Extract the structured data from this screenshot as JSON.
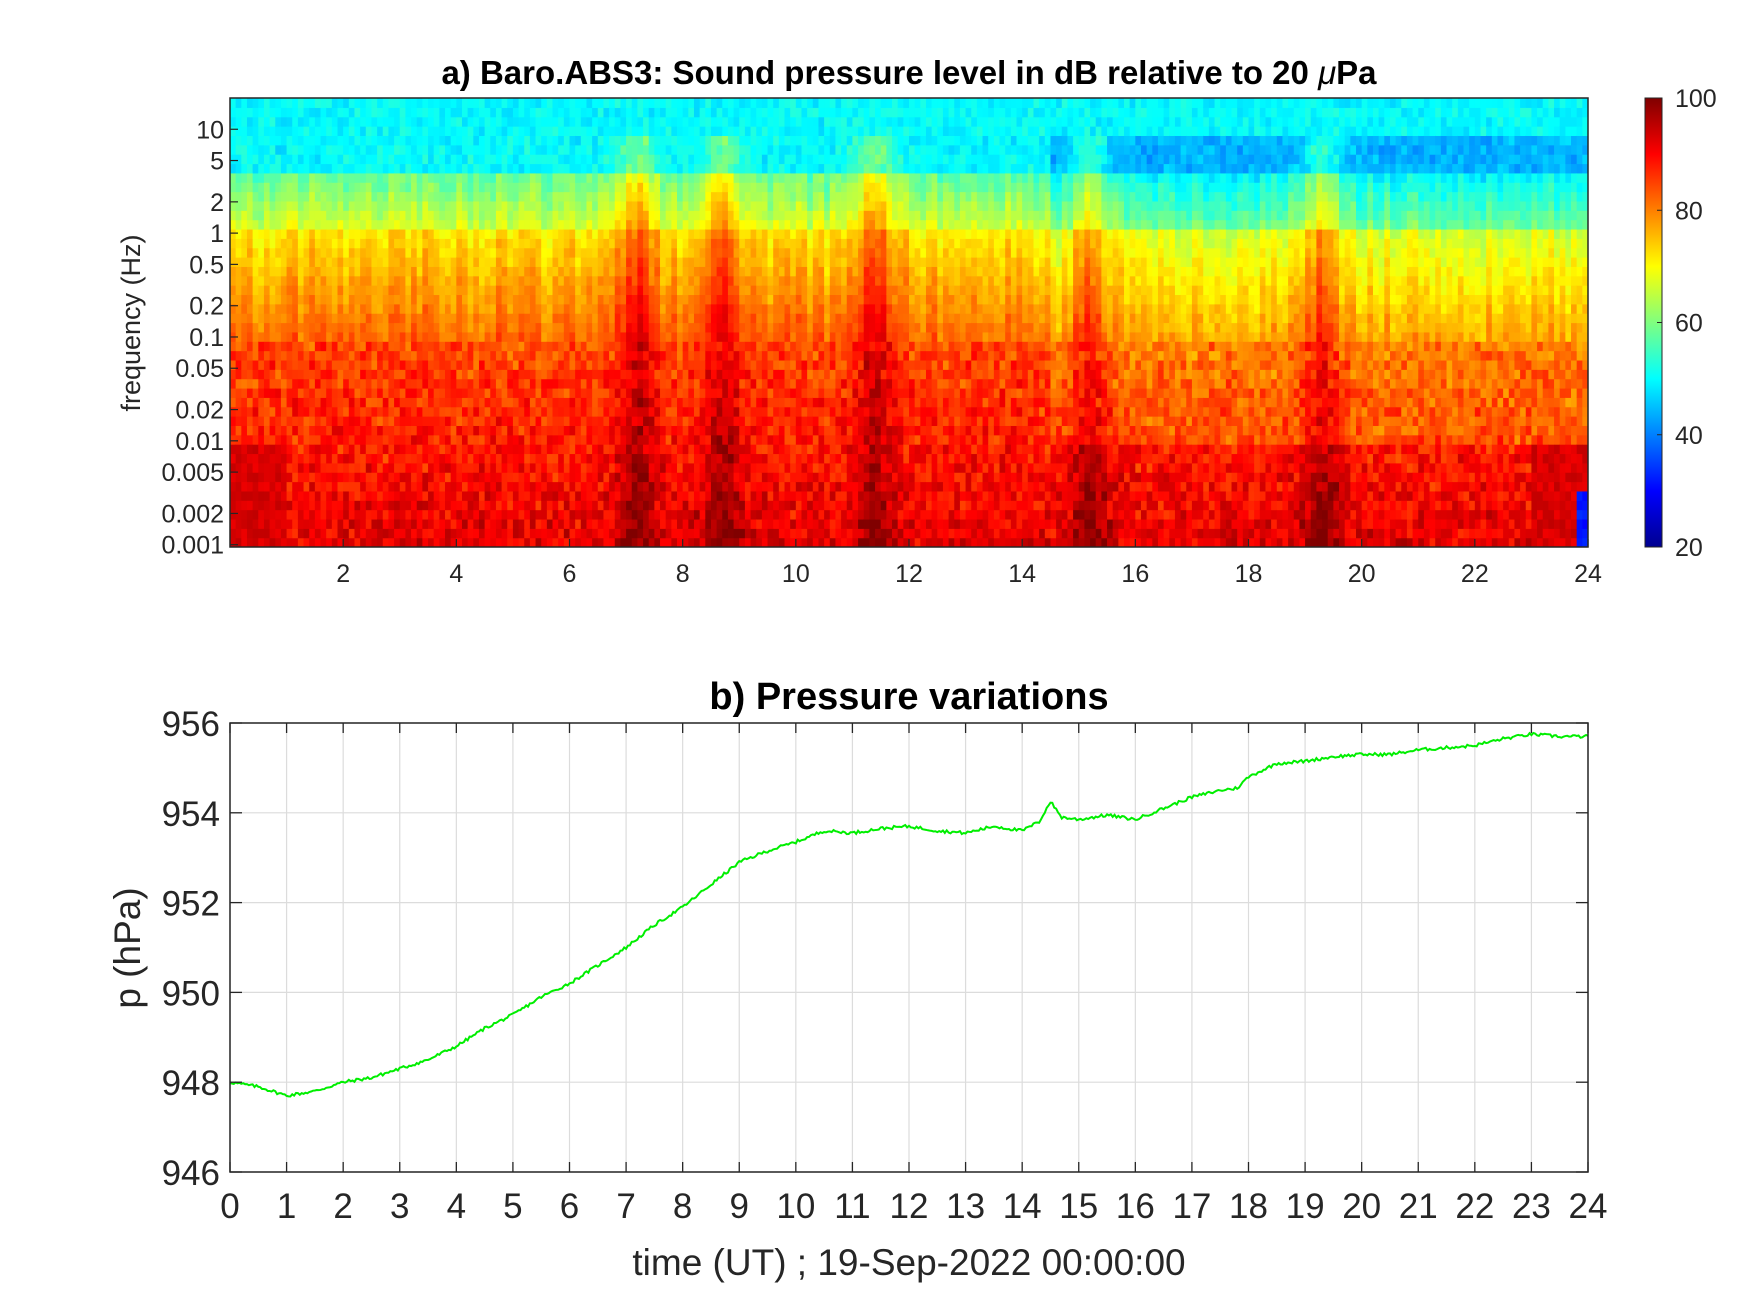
{
  "chart_data": [
    {
      "type": "heatmap",
      "title_pre": "a) Baro.ABS3: Sound pressure level in dB relative to 20 ",
      "title_mu": "μ",
      "title_post": "Pa",
      "xlabel": "",
      "ylabel": "frequency (Hz)",
      "x_range": [
        0,
        24
      ],
      "x_ticks": [
        2,
        4,
        6,
        8,
        10,
        12,
        14,
        16,
        18,
        20,
        22,
        24
      ],
      "y_scale": "log",
      "y_range_hz": [
        0.001,
        20
      ],
      "y_ticks": [
        0.001,
        0.002,
        0.005,
        0.01,
        0.02,
        0.05,
        0.1,
        0.2,
        0.5,
        1,
        2,
        5,
        10
      ],
      "y_tick_labels": [
        "0.001",
        "0.002",
        "0.005",
        "0.01",
        "0.02",
        "0.05",
        "0.1",
        "0.2",
        "0.5",
        "1",
        "2",
        "5",
        "10"
      ],
      "colorbar": {
        "range": [
          20,
          100
        ],
        "ticks": [
          20,
          40,
          60,
          80,
          100
        ],
        "colormap": "jet",
        "position": "right"
      },
      "colormap_stops": [
        "#00008f",
        "#0000ff",
        "#00ffff",
        "#ffff00",
        "#ff0000",
        "#800000"
      ],
      "intense_bursts_hours": [
        7.2,
        8.7,
        11.4,
        15.2,
        19.3
      ],
      "quiet_high_freq_hours": [
        14.5,
        24.0
      ]
    },
    {
      "type": "line",
      "title": "b) Pressure variations",
      "xlabel": "time (UT) ; 19-Sep-2022 00:00:00",
      "ylabel": "p (hPa)",
      "x_range": [
        0,
        24
      ],
      "x_ticks": [
        0,
        1,
        2,
        3,
        4,
        5,
        6,
        7,
        8,
        9,
        10,
        11,
        12,
        13,
        14,
        15,
        16,
        17,
        18,
        19,
        20,
        21,
        22,
        23,
        24
      ],
      "y_range": [
        946,
        956
      ],
      "y_ticks": [
        946,
        948,
        950,
        952,
        954,
        956
      ],
      "grid": true,
      "line_color": "#00ee00",
      "x": [
        0,
        0.5,
        1,
        1.5,
        2,
        2.5,
        3,
        3.5,
        4,
        4.5,
        5,
        5.5,
        6,
        6.5,
        7,
        7.5,
        8,
        8.5,
        9,
        9.5,
        10,
        10.5,
        11,
        11.5,
        12,
        12.5,
        13,
        13.5,
        14,
        14.3,
        14.5,
        14.7,
        15,
        15.5,
        16,
        16.5,
        17,
        17.5,
        17.8,
        18,
        18.5,
        19,
        19.5,
        20,
        20.5,
        21,
        21.5,
        22,
        22.5,
        23,
        23.5,
        24
      ],
      "y": [
        948.0,
        947.9,
        947.7,
        947.8,
        948.0,
        948.1,
        948.3,
        948.5,
        948.8,
        949.2,
        949.5,
        949.9,
        950.2,
        950.6,
        951.0,
        951.5,
        951.9,
        952.4,
        952.9,
        953.15,
        953.35,
        953.6,
        953.55,
        953.65,
        953.7,
        953.6,
        953.55,
        953.7,
        953.6,
        953.8,
        954.25,
        953.9,
        953.85,
        953.95,
        953.85,
        954.1,
        954.35,
        954.5,
        954.55,
        954.8,
        955.1,
        955.15,
        955.25,
        955.3,
        955.3,
        955.4,
        955.45,
        955.5,
        955.65,
        955.75,
        955.7,
        955.7
      ]
    }
  ]
}
